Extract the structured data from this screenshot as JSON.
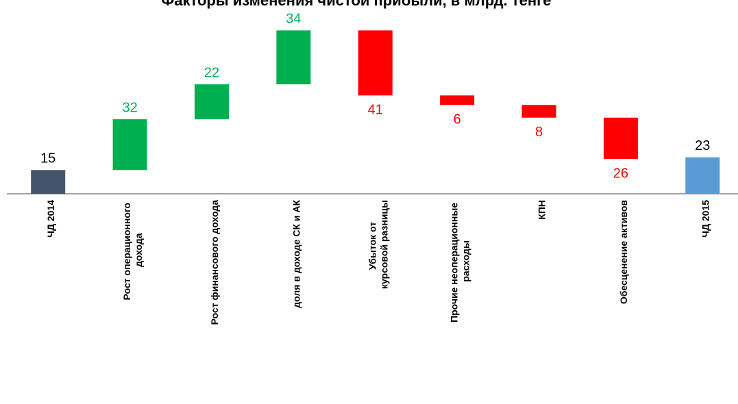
{
  "chart_data": {
    "type": "waterfall",
    "title": "Факторы изменения  чистой прибыли, в млрд. тенге",
    "categories": [
      "ЧД 2014",
      "Рост операционного дохода",
      "Рост финансового дохода",
      "доля в доходе СК и АК",
      "Убыток от курсовой разницы",
      "Прочие неоперационные расходы",
      "КПН",
      "Обесценение  активов",
      "ЧД 2015"
    ],
    "values": [
      15,
      32,
      22,
      34,
      -41,
      -6,
      -8,
      -26,
      23
    ],
    "measure": [
      "absolute",
      "relative",
      "relative",
      "relative",
      "relative",
      "relative",
      "relative",
      "relative",
      "total"
    ],
    "value_labels": [
      "15",
      "32",
      "22",
      "34",
      "41",
      "6",
      "8",
      "26",
      "23"
    ],
    "colors": [
      "#44546a",
      "#00b050",
      "#00b050",
      "#00b050",
      "#ff0000",
      "#ff0000",
      "#ff0000",
      "#ff0000",
      "#5b9bd5"
    ],
    "ylim": [
      0,
      120
    ]
  }
}
